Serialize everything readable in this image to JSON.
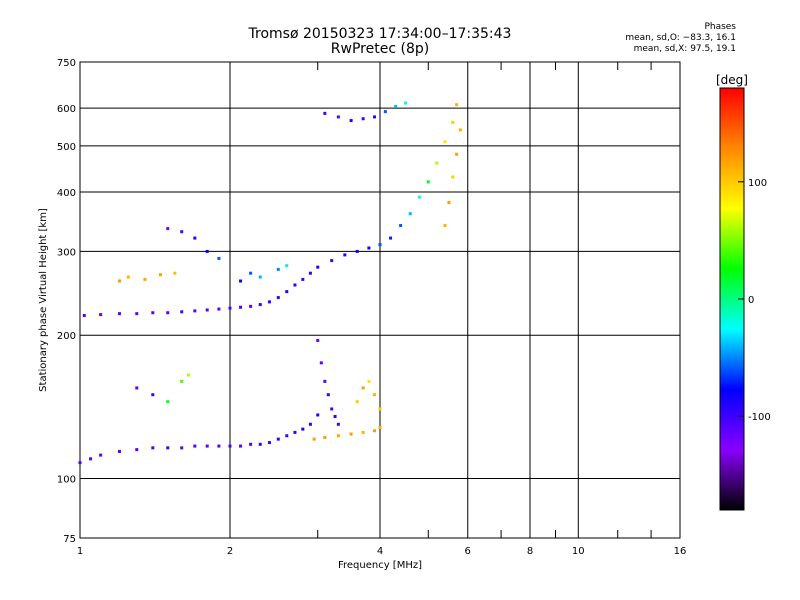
{
  "header": {
    "title_line1": "Tromsø 20150323 17:34:00–17:35:43",
    "title_line2": "RwPretec (8p)",
    "phases_title": "Phases",
    "phases_o": "mean, sd,O: −83.3, 16.1",
    "phases_x": "mean, sd,X:  97.5, 19.1"
  },
  "chart_data": {
    "type": "scatter",
    "title": "Tromsø 20150323 17:34:00–17:35:43",
    "subtitle": "RwPretec (8p)",
    "xlabel": "Frequency [MHz]",
    "ylabel": "Stationary phase Virtual Height [km]",
    "xscale": "log",
    "yscale": "log",
    "xlim": [
      1,
      16
    ],
    "ylim": [
      75,
      750
    ],
    "x_ticks": [
      1,
      2,
      4,
      6,
      8,
      10,
      16
    ],
    "x_minor_ticks": [
      3,
      5,
      7,
      9,
      12,
      14
    ],
    "y_ticks": [
      75,
      100,
      200,
      300,
      400,
      500,
      600,
      750
    ],
    "grid": true,
    "colorbar": {
      "label": "[deg]",
      "range": [
        -180,
        180
      ],
      "ticks": [
        100,
        0,
        -100
      ],
      "colormap": "rainbow",
      "colors": [
        "#ff0000",
        "#ff8800",
        "#ffff00",
        "#00ff00",
        "#00ffff",
        "#0000ff",
        "#8800ff",
        "#000000"
      ]
    },
    "series": [
      {
        "x": [
          1.02,
          1.1,
          1.2,
          1.3,
          1.4,
          1.5,
          1.6,
          1.7,
          1.8,
          1.9,
          2.0,
          2.1,
          2.2,
          2.3,
          2.4,
          2.5,
          2.6,
          2.7,
          2.8,
          2.9,
          3.0,
          3.2,
          3.4,
          3.6,
          3.8,
          4.0,
          4.2,
          4.4,
          4.6,
          4.8,
          5.0,
          5.2,
          5.4,
          5.6,
          5.7
        ],
        "y": [
          220,
          221,
          222,
          222,
          223,
          223,
          224,
          225,
          226,
          227,
          228,
          229,
          230,
          232,
          235,
          240,
          247,
          255,
          262,
          270,
          278,
          287,
          295,
          300,
          305,
          310,
          320,
          340,
          360,
          390,
          420,
          460,
          510,
          560,
          610
        ],
        "phase": [
          -110,
          -115,
          -110,
          -112,
          -108,
          -110,
          -105,
          -110,
          -108,
          -112,
          -110,
          -105,
          -108,
          -100,
          -95,
          -100,
          -90,
          -95,
          -100,
          -95,
          -90,
          -100,
          -90,
          -80,
          -85,
          -60,
          -70,
          -60,
          -40,
          -20,
          20,
          60,
          90,
          100,
          110
        ]
      },
      {
        "x": [
          1.0,
          1.05,
          1.1,
          1.2,
          1.3,
          1.4,
          1.5,
          1.6,
          1.7,
          1.8,
          1.9,
          2.0,
          2.1,
          2.2,
          2.3,
          2.4,
          2.5,
          2.6,
          2.7,
          2.8,
          2.9,
          3.0
        ],
        "y": [
          108,
          110,
          112,
          114,
          115,
          116,
          116,
          116,
          117,
          117,
          117,
          117,
          117,
          118,
          118,
          119,
          121,
          123,
          125,
          127,
          130,
          136
        ],
        "phase": [
          -110,
          -110,
          -112,
          -108,
          -110,
          -105,
          -100,
          -108,
          -110,
          -112,
          -110,
          -108,
          -110,
          -105,
          -100,
          -100,
          -95,
          -100,
          -95,
          -90,
          -95,
          -90
        ]
      },
      {
        "x": [
          2.95,
          3.1,
          3.3,
          3.5,
          3.7,
          3.9,
          4.0
        ],
        "y": [
          121,
          122,
          123,
          124,
          125,
          126,
          128
        ],
        "phase": [
          120,
          120,
          115,
          120,
          110,
          120,
          110
        ]
      },
      {
        "x": [
          3.0,
          3.05,
          3.1,
          3.15,
          3.2,
          3.25,
          3.3
        ],
        "y": [
          195,
          175,
          160,
          150,
          140,
          135,
          130
        ],
        "phase": [
          -120,
          -115,
          -110,
          -100,
          -105,
          -95,
          -100
        ]
      },
      {
        "x": [
          3.6,
          3.7,
          3.8,
          3.9,
          4.0
        ],
        "y": [
          145,
          155,
          160,
          150,
          140
        ],
        "phase": [
          100,
          120,
          90,
          110,
          100
        ]
      },
      {
        "x": [
          3.1,
          3.3,
          3.5,
          3.7,
          3.9,
          4.1,
          4.3,
          4.5
        ],
        "y": [
          585,
          575,
          565,
          570,
          575,
          590,
          605,
          615
        ],
        "phase": [
          -100,
          -110,
          -90,
          -100,
          -95,
          -60,
          -40,
          -20
        ]
      },
      {
        "x": [
          5.4,
          5.5,
          5.6,
          5.7,
          5.8
        ],
        "y": [
          340,
          380,
          430,
          480,
          540
        ],
        "phase": [
          110,
          120,
          100,
          120,
          110
        ]
      },
      {
        "x": [
          1.2,
          1.25,
          1.35,
          1.45,
          1.55
        ],
        "y": [
          260,
          265,
          262,
          268,
          270
        ],
        "phase": [
          120,
          110,
          115,
          120,
          105
        ]
      },
      {
        "x": [
          2.1,
          2.2,
          2.3,
          2.5,
          2.6
        ],
        "y": [
          260,
          270,
          265,
          275,
          280
        ],
        "phase": [
          -80,
          -60,
          -40,
          -50,
          -30
        ]
      },
      {
        "x": [
          1.5,
          1.6,
          1.7,
          1.8,
          1.9
        ],
        "y": [
          335,
          330,
          320,
          300,
          290
        ],
        "phase": [
          -120,
          -100,
          -90,
          -80,
          -60
        ]
      },
      {
        "x": [
          1.3,
          1.4,
          1.5,
          1.6,
          1.65
        ],
        "y": [
          155,
          150,
          145,
          160,
          165
        ],
        "phase": [
          -110,
          -100,
          20,
          40,
          60
        ]
      }
    ]
  }
}
